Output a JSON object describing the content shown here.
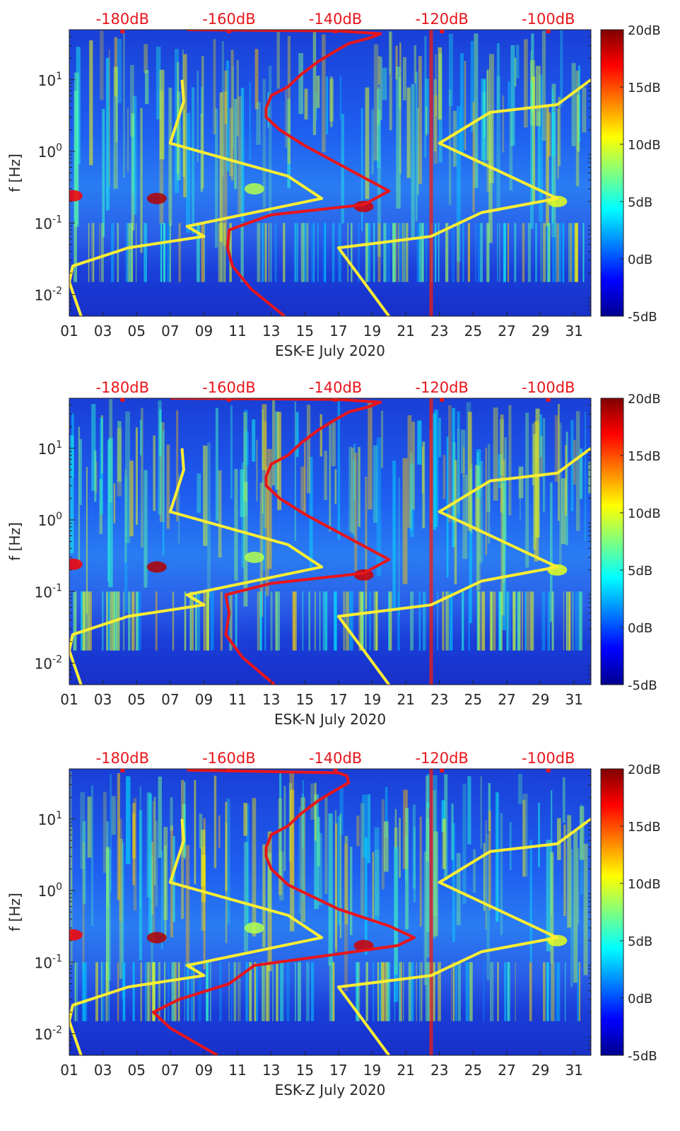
{
  "figure": {
    "x_ticks": [
      "01",
      "03",
      "05",
      "07",
      "09",
      "11",
      "13",
      "15",
      "17",
      "19",
      "21",
      "23",
      "25",
      "27",
      "29",
      "31"
    ],
    "top_ticks": [
      "-180dB",
      "-160dB",
      "-140dB",
      "-120dB",
      "-100dB"
    ],
    "y_ticks": [
      "10^{1}",
      "10^{0}",
      "10^{-1}",
      "10^{-2}"
    ],
    "colorbar_ticks": [
      "20dB",
      "15dB",
      "10dB",
      "5dB",
      "0dB",
      "-5dB"
    ],
    "ylabel": "f [Hz]",
    "colors": {
      "noise_model_line": "#ffee33",
      "median_psd_line": "#e8151b",
      "top_axis_text": "#e8151b",
      "colormap": "jet"
    }
  },
  "chart_data": [
    {
      "type": "heatmap",
      "xlabel": "ESK-E July 2020",
      "ylabel": "f [Hz]",
      "xlim": [
        1,
        32
      ],
      "ylim": [
        0.005,
        50
      ],
      "yscale": "log",
      "colorbar_range": [
        -5,
        20
      ],
      "colorbar_unit": "dB",
      "top_axis_range_dB": [
        -190,
        -92
      ],
      "yellow_models": [
        {
          "name": "",
          "points": [
            [
              1.7,
              0.005
            ],
            [
              1.0,
              0.015
            ],
            [
              1.2,
              0.025
            ],
            [
              4.5,
              0.045
            ],
            [
              9.0,
              0.065
            ],
            [
              8.0,
              0.09
            ],
            [
              16.0,
              0.22
            ],
            [
              14.0,
              0.45
            ],
            [
              7.0,
              1.3
            ],
            [
              7.8,
              5.0
            ],
            [
              7.7,
              10.0
            ]
          ]
        },
        {
          "name": "",
          "points": [
            [
              20.0,
              0.005
            ],
            [
              17.0,
              0.045
            ],
            [
              22.5,
              0.065
            ],
            [
              25.5,
              0.14
            ],
            [
              30.0,
              0.22
            ],
            [
              23.0,
              1.3
            ],
            [
              26.0,
              3.5
            ],
            [
              30.0,
              4.5
            ],
            [
              32.0,
              10.0
            ]
          ]
        }
      ],
      "red_psd": [
        [
          13.8,
          0.005
        ],
        [
          11.8,
          0.012
        ],
        [
          10.7,
          0.025
        ],
        [
          10.4,
          0.045
        ],
        [
          10.5,
          0.08
        ],
        [
          13.0,
          0.13
        ],
        [
          18.5,
          0.18
        ],
        [
          20.0,
          0.28
        ],
        [
          18.0,
          0.5
        ],
        [
          15.0,
          1.2
        ],
        [
          13.5,
          2.0
        ],
        [
          12.7,
          3.0
        ],
        [
          12.7,
          4.0
        ],
        [
          13.0,
          6.0
        ],
        [
          14.0,
          8.0
        ],
        [
          14.8,
          12.0
        ],
        [
          15.8,
          18.0
        ],
        [
          16.8,
          25.0
        ],
        [
          17.6,
          32.0
        ],
        [
          18.8,
          38.0
        ],
        [
          19.5,
          44.0
        ],
        [
          17.0,
          48.0
        ],
        [
          8.0,
          50.0
        ]
      ],
      "colorbar_ticks_dB": [
        20,
        15,
        10,
        5,
        0,
        -5
      ],
      "x_ticks": [
        "01",
        "03",
        "05",
        "07",
        "09",
        "11",
        "13",
        "15",
        "17",
        "19",
        "21",
        "23",
        "25",
        "27",
        "29",
        "31"
      ],
      "top_axis_ticks": [
        "-180dB",
        "-160dB",
        "-140dB",
        "-120dB",
        "-100dB"
      ]
    },
    {
      "type": "heatmap",
      "xlabel": "ESK-N July 2020",
      "ylabel": "f [Hz]",
      "xlim": [
        1,
        32
      ],
      "ylim": [
        0.005,
        50
      ],
      "yscale": "log",
      "colorbar_range": [
        -5,
        20
      ],
      "colorbar_unit": "dB",
      "top_axis_range_dB": [
        -190,
        -92
      ],
      "yellow_models": [
        {
          "name": "",
          "points": [
            [
              1.7,
              0.005
            ],
            [
              1.0,
              0.015
            ],
            [
              1.2,
              0.025
            ],
            [
              4.5,
              0.045
            ],
            [
              9.0,
              0.065
            ],
            [
              8.0,
              0.09
            ],
            [
              16.0,
              0.22
            ],
            [
              14.0,
              0.45
            ],
            [
              7.0,
              1.3
            ],
            [
              7.8,
              5.0
            ],
            [
              7.7,
              10.0
            ]
          ]
        },
        {
          "name": "",
          "points": [
            [
              20.0,
              0.005
            ],
            [
              17.0,
              0.045
            ],
            [
              22.5,
              0.065
            ],
            [
              25.5,
              0.14
            ],
            [
              30.0,
              0.22
            ],
            [
              23.0,
              1.3
            ],
            [
              26.0,
              3.5
            ],
            [
              30.0,
              4.5
            ],
            [
              32.0,
              10.0
            ]
          ]
        }
      ],
      "red_psd": [
        [
          13.2,
          0.005
        ],
        [
          11.3,
          0.012
        ],
        [
          10.3,
          0.025
        ],
        [
          10.5,
          0.05
        ],
        [
          10.3,
          0.09
        ],
        [
          13.0,
          0.13
        ],
        [
          18.5,
          0.18
        ],
        [
          20.0,
          0.28
        ],
        [
          18.0,
          0.5
        ],
        [
          15.0,
          1.2
        ],
        [
          13.5,
          2.0
        ],
        [
          12.7,
          3.0
        ],
        [
          12.7,
          4.0
        ],
        [
          13.0,
          6.0
        ],
        [
          14.0,
          8.0
        ],
        [
          14.8,
          12.0
        ],
        [
          15.8,
          18.0
        ],
        [
          16.8,
          25.0
        ],
        [
          17.6,
          32.0
        ],
        [
          18.8,
          38.0
        ],
        [
          19.5,
          44.0
        ],
        [
          17.0,
          48.0
        ],
        [
          7.0,
          50.0
        ]
      ],
      "colorbar_ticks_dB": [
        20,
        15,
        10,
        5,
        0,
        -5
      ],
      "x_ticks": [
        "01",
        "03",
        "05",
        "07",
        "09",
        "11",
        "13",
        "15",
        "17",
        "19",
        "21",
        "23",
        "25",
        "27",
        "29",
        "31"
      ],
      "top_axis_ticks": [
        "-180dB",
        "-160dB",
        "-140dB",
        "-120dB",
        "-100dB"
      ]
    },
    {
      "type": "heatmap",
      "xlabel": "ESK-Z July 2020",
      "ylabel": "f [Hz]",
      "xlim": [
        1,
        32
      ],
      "ylim": [
        0.005,
        50
      ],
      "yscale": "log",
      "colorbar_range": [
        -5,
        20
      ],
      "colorbar_unit": "dB",
      "top_axis_range_dB": [
        -190,
        -92
      ],
      "yellow_models": [
        {
          "name": "",
          "points": [
            [
              1.7,
              0.005
            ],
            [
              1.0,
              0.015
            ],
            [
              1.2,
              0.025
            ],
            [
              4.5,
              0.045
            ],
            [
              9.0,
              0.065
            ],
            [
              8.0,
              0.09
            ],
            [
              16.0,
              0.22
            ],
            [
              14.0,
              0.45
            ],
            [
              7.0,
              1.3
            ],
            [
              7.8,
              5.0
            ],
            [
              7.7,
              10.0
            ]
          ]
        },
        {
          "name": "",
          "points": [
            [
              20.0,
              0.005
            ],
            [
              17.0,
              0.045
            ],
            [
              22.5,
              0.065
            ],
            [
              25.5,
              0.14
            ],
            [
              30.0,
              0.22
            ],
            [
              23.0,
              1.3
            ],
            [
              26.0,
              3.5
            ],
            [
              30.0,
              4.5
            ],
            [
              32.0,
              10.0
            ]
          ]
        }
      ],
      "red_psd": [
        [
          9.8,
          0.005
        ],
        [
          7.0,
          0.012
        ],
        [
          6.0,
          0.02
        ],
        [
          7.5,
          0.03
        ],
        [
          10.5,
          0.05
        ],
        [
          12.0,
          0.09
        ],
        [
          17.0,
          0.13
        ],
        [
          20.5,
          0.17
        ],
        [
          21.5,
          0.22
        ],
        [
          20.0,
          0.32
        ],
        [
          17.0,
          0.55
        ],
        [
          14.0,
          1.2
        ],
        [
          13.0,
          2.0
        ],
        [
          12.7,
          3.0
        ],
        [
          12.7,
          4.0
        ],
        [
          13.0,
          6.0
        ],
        [
          14.0,
          8.0
        ],
        [
          14.8,
          12.0
        ],
        [
          15.8,
          18.0
        ],
        [
          16.8,
          25.0
        ],
        [
          17.6,
          32.0
        ],
        [
          17.5,
          40.0
        ],
        [
          17.0,
          44.0
        ],
        [
          8.0,
          48.0
        ]
      ],
      "colorbar_ticks_dB": [
        20,
        15,
        10,
        5,
        0,
        -5
      ],
      "x_ticks": [
        "01",
        "03",
        "05",
        "07",
        "09",
        "11",
        "13",
        "15",
        "17",
        "19",
        "21",
        "23",
        "25",
        "27",
        "29",
        "31"
      ],
      "top_axis_ticks": [
        "-180dB",
        "-160dB",
        "-140dB",
        "-120dB",
        "-100dB"
      ]
    }
  ]
}
